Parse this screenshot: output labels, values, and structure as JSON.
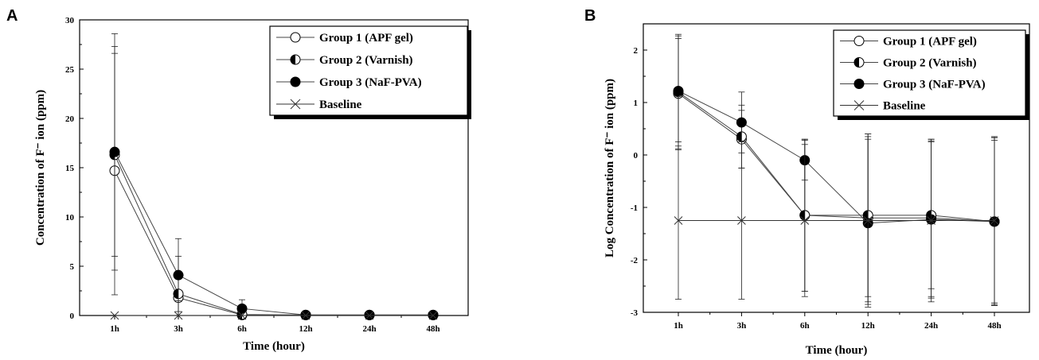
{
  "figure": {
    "panel_a_label": "A",
    "panel_b_label": "B"
  },
  "chart_data": [
    {
      "type": "line",
      "panel": "A",
      "categories": [
        "1h",
        "3h",
        "6h",
        "12h",
        "24h",
        "48h"
      ],
      "xlabel": "Time (hour)",
      "ylabel": "Concentration of F⁻ ion (ppm)",
      "ylim": [
        0,
        30
      ],
      "yticks": [
        0,
        5,
        10,
        15,
        20,
        25,
        30
      ],
      "baseline_value": 0,
      "grid": false,
      "legend_position": "top-right",
      "series": [
        {
          "name": "Group 1 (APF gel)",
          "marker": "open-circle",
          "values": [
            14.7,
            1.8,
            0.05,
            0.05,
            0.05,
            0.05
          ],
          "error": [
            12.6,
            0,
            0,
            0,
            0,
            0
          ]
        },
        {
          "name": "Group 2 (Varnish)",
          "marker": "half-circle",
          "values": [
            16.3,
            2.2,
            0.1,
            0.05,
            0.05,
            0.05
          ],
          "error": [
            10.3,
            3.8,
            0,
            0,
            0,
            0
          ]
        },
        {
          "name": "Group 3 (NaF-PVA)",
          "marker": "filled-circle",
          "values": [
            16.6,
            4.1,
            0.7,
            0.05,
            0.05,
            0.05
          ],
          "error": [
            12.0,
            3.7,
            0.9,
            0,
            0,
            0
          ]
        },
        {
          "name": "Baseline",
          "marker": "x",
          "values": [
            0,
            0,
            0,
            0,
            0,
            0
          ],
          "error": [
            0,
            1.5,
            0,
            0,
            0,
            0
          ]
        }
      ]
    },
    {
      "type": "line",
      "panel": "B",
      "categories": [
        "1h",
        "3h",
        "6h",
        "12h",
        "24h",
        "48h"
      ],
      "xlabel": "Time (hour)",
      "ylabel": "Log Concentration of F⁻ ion (ppm)",
      "ylim": [
        -3,
        2.5
      ],
      "yticks": [
        -3,
        -2,
        -1,
        0,
        1,
        2
      ],
      "grid": false,
      "legend_position": "top-right",
      "series": [
        {
          "name": "Group 1 (APF gel)",
          "marker": "open-circle",
          "values": [
            1.17,
            0.3,
            -1.15,
            -1.2,
            -1.2,
            -1.27
          ],
          "error": [
            1.05,
            0.55,
            1.45,
            1.6,
            1.5,
            1.6
          ]
        },
        {
          "name": "Group 2 (Varnish)",
          "marker": "half-circle",
          "values": [
            1.2,
            0.35,
            -1.15,
            -1.15,
            -1.15,
            -1.27
          ],
          "error": [
            1.1,
            0.6,
            1.45,
            1.55,
            1.4,
            1.55
          ]
        },
        {
          "name": "Group 3 (NaF-PVA)",
          "marker": "filled-circle",
          "values": [
            1.22,
            0.62,
            -0.1,
            -1.3,
            -1.23,
            -1.27
          ],
          "error": [
            1.05,
            0.58,
            0.38,
            1.6,
            1.5,
            1.6
          ]
        },
        {
          "name": "Baseline",
          "marker": "x",
          "values": [
            -1.25,
            -1.25,
            -1.25,
            -1.25,
            -1.25,
            -1.25
          ],
          "error": [
            1.5,
            1.5,
            1.45,
            1.6,
            1.55,
            1.6
          ]
        }
      ]
    }
  ]
}
